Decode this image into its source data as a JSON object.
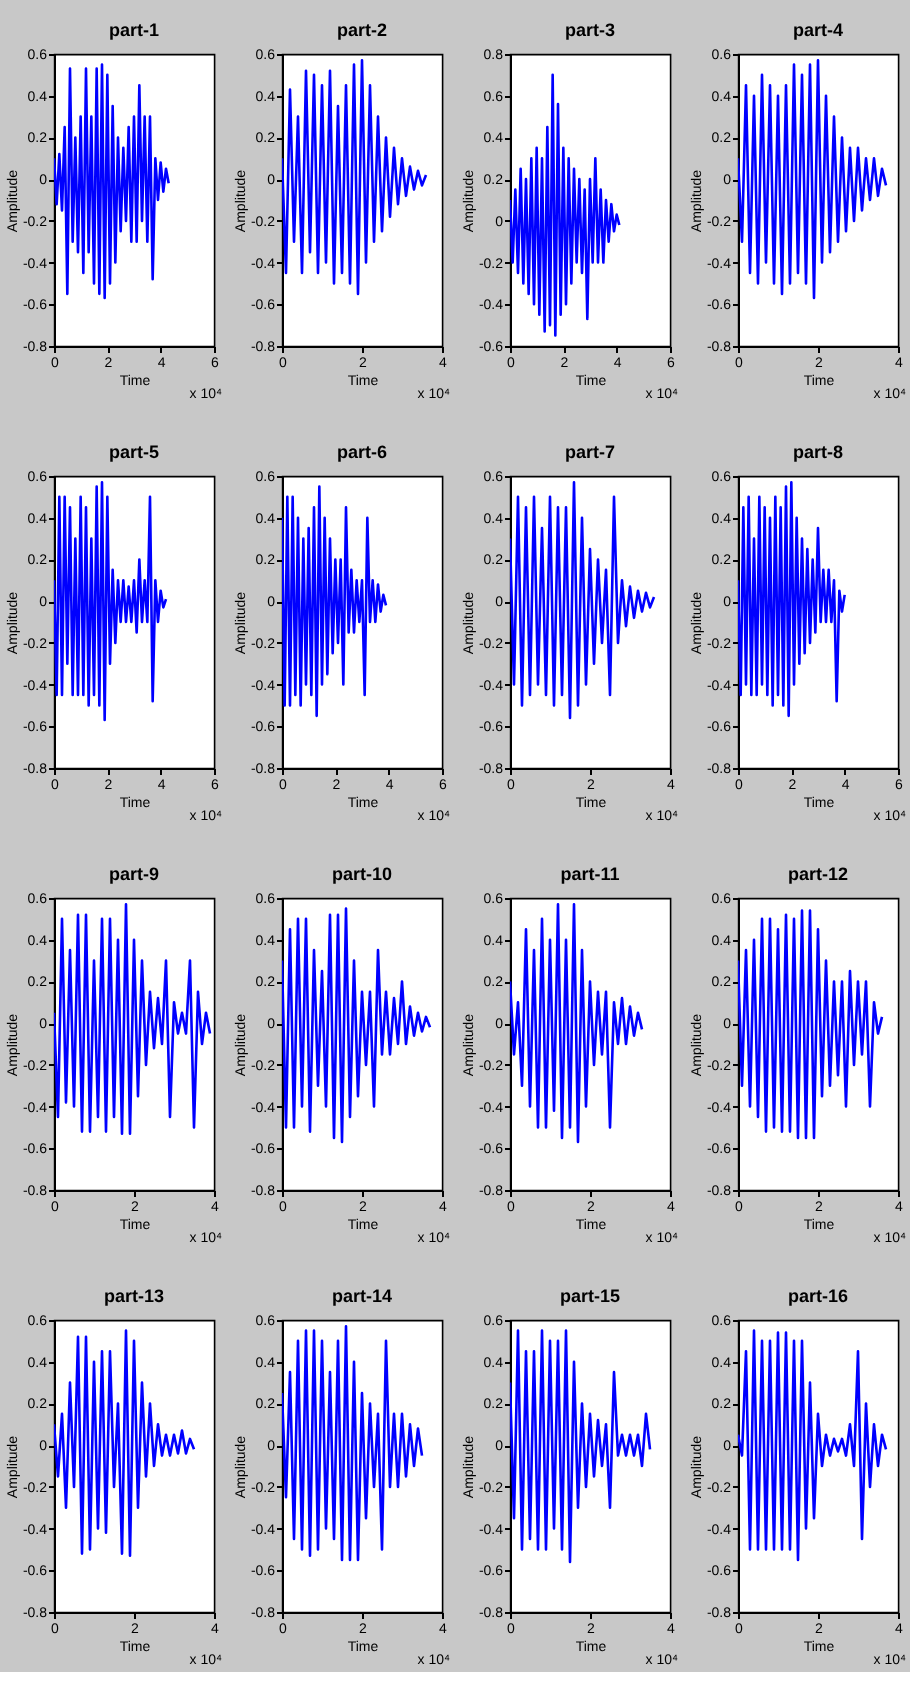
{
  "chart_data": [
    {
      "type": "line",
      "title": "part-1",
      "xlabel": "Time",
      "ylabel": "Amplitude",
      "annotations": [
        "x 10⁴"
      ],
      "xlim": [
        0,
        6
      ],
      "xticks": [
        0,
        2,
        4,
        6
      ],
      "ylim": [
        -0.8,
        0.6
      ],
      "yticks": [
        -0.8,
        -0.6,
        -0.4,
        -0.2,
        0,
        0.2,
        0.4,
        0.6
      ],
      "x": [
        0,
        0.1,
        0.2,
        0.3,
        0.4,
        0.5,
        0.6,
        0.7,
        0.8,
        0.9,
        1,
        1.1,
        1.2,
        1.3,
        1.4,
        1.5,
        1.6,
        1.7,
        1.8,
        1.9,
        2,
        2.1,
        2.2,
        2.3,
        2.4,
        2.5,
        2.6,
        2.7,
        2.8,
        2.9,
        3,
        3.1,
        3.2,
        3.3,
        3.4,
        3.5,
        3.6,
        3.7,
        3.8,
        3.9,
        4,
        4.1,
        4.2,
        4.3
      ],
      "series": [
        {
          "color": "#0000ff",
          "values": [
            0.1,
            -0.12,
            0.12,
            -0.15,
            0.25,
            -0.55,
            0.53,
            -0.3,
            0.2,
            -0.35,
            0.3,
            -0.45,
            0.53,
            -0.35,
            0.3,
            -0.5,
            0.53,
            -0.55,
            0.55,
            -0.57,
            0.5,
            -0.5,
            0.35,
            -0.4,
            0.2,
            -0.25,
            0.15,
            -0.2,
            0.25,
            -0.3,
            0.3,
            -0.3,
            0.45,
            -0.2,
            0.3,
            -0.3,
            0.3,
            -0.48,
            0.1,
            -0.1,
            0.08,
            -0.06,
            0.05,
            -0.02
          ]
        }
      ]
    },
    {
      "type": "line",
      "title": "part-2",
      "xlabel": "Time",
      "ylabel": "Amplitude",
      "annotations": [
        "x 10⁴"
      ],
      "xlim": [
        0,
        4
      ],
      "xticks": [
        0,
        2,
        4
      ],
      "ylim": [
        -0.8,
        0.6
      ],
      "yticks": [
        -0.8,
        -0.6,
        -0.4,
        -0.2,
        0,
        0.2,
        0.4,
        0.6
      ],
      "x": [
        0,
        0.1,
        0.2,
        0.3,
        0.4,
        0.5,
        0.6,
        0.7,
        0.8,
        0.9,
        1,
        1.1,
        1.2,
        1.3,
        1.4,
        1.5,
        1.6,
        1.7,
        1.8,
        1.9,
        2,
        2.1,
        2.2,
        2.3,
        2.4,
        2.5,
        2.6,
        2.7,
        2.8,
        2.9,
        3,
        3.1,
        3.2,
        3.3,
        3.4,
        3.5,
        3.6
      ],
      "series": [
        {
          "color": "#0000ff",
          "values": [
            0.1,
            -0.45,
            0.43,
            -0.3,
            0.3,
            -0.45,
            0.52,
            -0.35,
            0.5,
            -0.45,
            0.45,
            -0.4,
            0.52,
            -0.5,
            0.35,
            -0.45,
            0.45,
            -0.5,
            0.55,
            -0.55,
            0.57,
            -0.4,
            0.45,
            -0.3,
            0.3,
            -0.25,
            0.2,
            -0.18,
            0.15,
            -0.12,
            0.1,
            -0.08,
            0.06,
            -0.05,
            0.04,
            -0.03,
            0.02
          ]
        }
      ]
    },
    {
      "type": "line",
      "title": "part-3",
      "xlabel": "Time",
      "ylabel": "Amplitude",
      "annotations": [
        "x 10⁴"
      ],
      "xlim": [
        0,
        6
      ],
      "xticks": [
        0,
        2,
        4,
        6
      ],
      "ylim": [
        -0.6,
        0.8
      ],
      "yticks": [
        -0.6,
        -0.4,
        -0.2,
        0,
        0.2,
        0.4,
        0.6,
        0.8
      ],
      "x": [
        0,
        0.1,
        0.2,
        0.3,
        0.4,
        0.5,
        0.6,
        0.7,
        0.8,
        0.9,
        1,
        1.1,
        1.2,
        1.3,
        1.4,
        1.5,
        1.6,
        1.7,
        1.8,
        1.9,
        2,
        2.1,
        2.2,
        2.3,
        2.4,
        2.5,
        2.6,
        2.7,
        2.8,
        2.9,
        3,
        3.1,
        3.2,
        3.3,
        3.4,
        3.5,
        3.6,
        3.7,
        3.8,
        3.9,
        4,
        4.1
      ],
      "series": [
        {
          "color": "#0000ff",
          "values": [
            0.1,
            -0.2,
            0.15,
            -0.25,
            0.25,
            -0.3,
            0.2,
            -0.35,
            0.3,
            -0.4,
            0.35,
            -0.45,
            0.3,
            -0.53,
            0.45,
            -0.5,
            0.7,
            -0.55,
            0.56,
            -0.45,
            0.35,
            -0.4,
            0.3,
            -0.3,
            0.25,
            -0.2,
            0.2,
            -0.25,
            0.15,
            -0.47,
            0.2,
            -0.2,
            0.3,
            -0.2,
            0.15,
            -0.2,
            0.1,
            -0.1,
            0.08,
            -0.05,
            0.03,
            -0.02
          ]
        }
      ]
    },
    {
      "type": "line",
      "title": "part-4",
      "xlabel": "Time",
      "ylabel": "Amplitude",
      "annotations": [
        "x 10⁴"
      ],
      "xlim": [
        0,
        4
      ],
      "xticks": [
        0,
        2,
        4
      ],
      "ylim": [
        -0.8,
        0.6
      ],
      "yticks": [
        -0.8,
        -0.6,
        -0.4,
        -0.2,
        0,
        0.2,
        0.4,
        0.6
      ],
      "x": [
        0,
        0.1,
        0.2,
        0.3,
        0.4,
        0.5,
        0.6,
        0.7,
        0.8,
        0.9,
        1,
        1.1,
        1.2,
        1.3,
        1.4,
        1.5,
        1.6,
        1.7,
        1.8,
        1.9,
        2,
        2.1,
        2.2,
        2.3,
        2.4,
        2.5,
        2.6,
        2.7,
        2.8,
        2.9,
        3,
        3.1,
        3.2,
        3.3,
        3.4,
        3.5,
        3.6,
        3.7
      ],
      "series": [
        {
          "color": "#0000ff",
          "values": [
            0.1,
            -0.3,
            0.45,
            -0.45,
            0.4,
            -0.5,
            0.5,
            -0.4,
            0.45,
            -0.5,
            0.4,
            -0.55,
            0.45,
            -0.5,
            0.55,
            -0.45,
            0.5,
            -0.5,
            0.55,
            -0.57,
            0.57,
            -0.4,
            0.4,
            -0.35,
            0.3,
            -0.3,
            0.2,
            -0.25,
            0.15,
            -0.2,
            0.15,
            -0.15,
            0.1,
            -0.1,
            0.1,
            -0.08,
            0.05,
            -0.03
          ]
        }
      ]
    },
    {
      "type": "line",
      "title": "part-5",
      "xlabel": "Time",
      "ylabel": "Amplitude",
      "annotations": [
        "x 10⁴"
      ],
      "xlim": [
        0,
        6
      ],
      "xticks": [
        0,
        2,
        4,
        6
      ],
      "ylim": [
        -0.8,
        0.6
      ],
      "yticks": [
        -0.8,
        -0.6,
        -0.4,
        -0.2,
        0,
        0.2,
        0.4,
        0.6
      ],
      "x": [
        0,
        0.1,
        0.2,
        0.3,
        0.4,
        0.5,
        0.6,
        0.7,
        0.8,
        0.9,
        1,
        1.1,
        1.2,
        1.3,
        1.4,
        1.5,
        1.6,
        1.7,
        1.8,
        1.9,
        2,
        2.1,
        2.2,
        2.3,
        2.4,
        2.5,
        2.6,
        2.7,
        2.8,
        2.9,
        3,
        3.1,
        3.2,
        3.3,
        3.4,
        3.5,
        3.6,
        3.7,
        3.8,
        3.9,
        4,
        4.1,
        4.2
      ],
      "series": [
        {
          "color": "#0000ff",
          "values": [
            0.1,
            -0.45,
            0.5,
            -0.45,
            0.5,
            -0.3,
            0.45,
            -0.45,
            0.3,
            -0.45,
            0.5,
            -0.45,
            0.45,
            -0.5,
            0.3,
            -0.45,
            0.55,
            -0.5,
            0.57,
            -0.57,
            0.5,
            -0.3,
            0.15,
            -0.2,
            0.1,
            -0.1,
            0.1,
            -0.1,
            0.07,
            -0.1,
            0.1,
            -0.15,
            0.2,
            -0.1,
            0.1,
            -0.1,
            0.5,
            -0.48,
            0.1,
            -0.1,
            0.05,
            -0.03,
            0.01
          ]
        }
      ]
    },
    {
      "type": "line",
      "title": "part-6",
      "xlabel": "Time",
      "ylabel": "Amplitude",
      "annotations": [
        "x 10⁴"
      ],
      "xlim": [
        0,
        6
      ],
      "xticks": [
        0,
        2,
        4,
        6
      ],
      "ylim": [
        -0.8,
        0.6
      ],
      "yticks": [
        -0.8,
        -0.6,
        -0.4,
        -0.2,
        0,
        0.2,
        0.4,
        0.6
      ],
      "x": [
        0,
        0.1,
        0.2,
        0.3,
        0.4,
        0.5,
        0.6,
        0.7,
        0.8,
        0.9,
        1,
        1.1,
        1.2,
        1.3,
        1.4,
        1.5,
        1.6,
        1.7,
        1.8,
        1.9,
        2,
        2.1,
        2.2,
        2.3,
        2.4,
        2.5,
        2.6,
        2.7,
        2.8,
        2.9,
        3,
        3.1,
        3.2,
        3.3,
        3.4,
        3.5,
        3.6,
        3.7,
        3.8,
        3.9
      ],
      "series": [
        {
          "color": "#0000ff",
          "values": [
            0.4,
            -0.5,
            0.5,
            -0.5,
            0.5,
            -0.45,
            0.4,
            -0.5,
            0.3,
            -0.4,
            0.35,
            -0.45,
            0.45,
            -0.55,
            0.55,
            -0.4,
            0.4,
            -0.35,
            0.3,
            -0.25,
            0.2,
            -0.2,
            0.2,
            -0.4,
            0.45,
            -0.15,
            0.15,
            -0.15,
            0.1,
            -0.1,
            0.1,
            -0.45,
            0.4,
            -0.1,
            0.1,
            -0.1,
            0.08,
            -0.05,
            0.03,
            -0.02
          ]
        }
      ]
    },
    {
      "type": "line",
      "title": "part-7",
      "xlabel": "Time",
      "ylabel": "Amplitude",
      "annotations": [
        "x 10⁴"
      ],
      "xlim": [
        0,
        4
      ],
      "xticks": [
        0,
        2,
        4
      ],
      "ylim": [
        -0.8,
        0.6
      ],
      "yticks": [
        -0.8,
        -0.6,
        -0.4,
        -0.2,
        0,
        0.2,
        0.4,
        0.6
      ],
      "x": [
        0,
        0.1,
        0.2,
        0.3,
        0.4,
        0.5,
        0.6,
        0.7,
        0.8,
        0.9,
        1,
        1.1,
        1.2,
        1.3,
        1.4,
        1.5,
        1.6,
        1.7,
        1.8,
        1.9,
        2,
        2.1,
        2.2,
        2.3,
        2.4,
        2.5,
        2.6,
        2.7,
        2.8,
        2.9,
        3,
        3.1,
        3.2,
        3.3,
        3.4,
        3.5,
        3.6
      ],
      "series": [
        {
          "color": "#0000ff",
          "values": [
            0.3,
            -0.4,
            0.5,
            -0.5,
            0.45,
            -0.45,
            0.5,
            -0.4,
            0.35,
            -0.45,
            0.5,
            -0.5,
            0.45,
            -0.45,
            0.45,
            -0.56,
            0.57,
            -0.5,
            0.4,
            -0.4,
            0.25,
            -0.3,
            0.2,
            -0.2,
            0.15,
            -0.45,
            0.5,
            -0.2,
            0.1,
            -0.12,
            0.07,
            -0.08,
            0.05,
            -0.05,
            0.04,
            -0.03,
            0.02
          ]
        }
      ]
    },
    {
      "type": "line",
      "title": "part-8",
      "xlabel": "Time",
      "ylabel": "Amplitude",
      "annotations": [
        "x 10⁴"
      ],
      "xlim": [
        0,
        6
      ],
      "xticks": [
        0,
        2,
        4,
        6
      ],
      "ylim": [
        -0.8,
        0.6
      ],
      "yticks": [
        -0.8,
        -0.6,
        -0.4,
        -0.2,
        0,
        0.2,
        0.4,
        0.6
      ],
      "x": [
        0,
        0.1,
        0.2,
        0.3,
        0.4,
        0.5,
        0.6,
        0.7,
        0.8,
        0.9,
        1,
        1.1,
        1.2,
        1.3,
        1.4,
        1.5,
        1.6,
        1.7,
        1.8,
        1.9,
        2,
        2.1,
        2.2,
        2.3,
        2.4,
        2.5,
        2.6,
        2.7,
        2.8,
        2.9,
        3,
        3.1,
        3.2,
        3.3,
        3.4,
        3.5,
        3.6,
        3.7,
        3.8,
        3.9,
        4
      ],
      "series": [
        {
          "color": "#0000ff",
          "values": [
            0.1,
            -0.45,
            0.45,
            -0.4,
            0.5,
            -0.45,
            0.3,
            -0.45,
            0.5,
            -0.4,
            0.45,
            -0.45,
            0.4,
            -0.5,
            0.5,
            -0.45,
            0.45,
            -0.5,
            0.55,
            -0.55,
            0.57,
            -0.4,
            0.4,
            -0.3,
            0.3,
            -0.25,
            0.25,
            -0.2,
            0.2,
            -0.15,
            0.35,
            -0.1,
            0.15,
            -0.1,
            0.15,
            -0.1,
            0.1,
            -0.48,
            0.05,
            -0.05,
            0.03
          ]
        }
      ]
    },
    {
      "type": "line",
      "title": "part-9",
      "xlabel": "Time",
      "ylabel": "Amplitude",
      "annotations": [
        "x 10⁴"
      ],
      "xlim": [
        0,
        4
      ],
      "xticks": [
        0,
        2,
        4
      ],
      "ylim": [
        -0.8,
        0.6
      ],
      "yticks": [
        -0.8,
        -0.6,
        -0.4,
        -0.2,
        0,
        0.2,
        0.4,
        0.6
      ],
      "x": [
        0,
        0.1,
        0.2,
        0.3,
        0.4,
        0.5,
        0.6,
        0.7,
        0.8,
        0.9,
        1,
        1.1,
        1.2,
        1.3,
        1.4,
        1.5,
        1.6,
        1.7,
        1.8,
        1.9,
        2,
        2.1,
        2.2,
        2.3,
        2.4,
        2.5,
        2.6,
        2.7,
        2.8,
        2.9,
        3,
        3.1,
        3.2,
        3.3,
        3.4,
        3.5,
        3.6,
        3.7,
        3.8,
        3.9
      ],
      "series": [
        {
          "color": "#0000ff",
          "values": [
            0.05,
            -0.45,
            0.5,
            -0.38,
            0.35,
            -0.4,
            0.52,
            -0.52,
            0.52,
            -0.52,
            0.3,
            -0.45,
            0.5,
            -0.52,
            0.5,
            -0.45,
            0.4,
            -0.53,
            0.57,
            -0.53,
            0.4,
            -0.35,
            0.3,
            -0.2,
            0.15,
            -0.12,
            0.12,
            -0.1,
            0.3,
            -0.45,
            0.1,
            -0.05,
            0.05,
            -0.05,
            0.3,
            -0.5,
            0.15,
            -0.1,
            0.05,
            -0.05
          ]
        }
      ]
    },
    {
      "type": "line",
      "title": "part-10",
      "xlabel": "Time",
      "ylabel": "Amplitude",
      "annotations": [
        "x 10⁴"
      ],
      "xlim": [
        0,
        4
      ],
      "xticks": [
        0,
        2,
        4
      ],
      "ylim": [
        -0.8,
        0.6
      ],
      "yticks": [
        -0.8,
        -0.6,
        -0.4,
        -0.2,
        0,
        0.2,
        0.4,
        0.6
      ],
      "x": [
        0,
        0.1,
        0.2,
        0.3,
        0.4,
        0.5,
        0.6,
        0.7,
        0.8,
        0.9,
        1,
        1.1,
        1.2,
        1.3,
        1.4,
        1.5,
        1.6,
        1.7,
        1.8,
        1.9,
        2,
        2.1,
        2.2,
        2.3,
        2.4,
        2.5,
        2.6,
        2.7,
        2.8,
        2.9,
        3,
        3.1,
        3.2,
        3.3,
        3.4,
        3.5,
        3.6,
        3.7
      ],
      "series": [
        {
          "color": "#0000ff",
          "values": [
            0.3,
            -0.5,
            0.45,
            -0.5,
            0.5,
            -0.4,
            0.5,
            -0.52,
            0.35,
            -0.3,
            0.25,
            -0.4,
            0.52,
            -0.55,
            0.52,
            -0.57,
            0.55,
            -0.45,
            0.3,
            -0.35,
            0.15,
            -0.2,
            0.15,
            -0.4,
            0.35,
            -0.15,
            0.15,
            -0.15,
            0.12,
            -0.1,
            0.2,
            -0.1,
            0.08,
            -0.06,
            0.05,
            -0.04,
            0.03,
            -0.02
          ]
        }
      ]
    },
    {
      "type": "line",
      "title": "part-11",
      "xlabel": "Time",
      "ylabel": "Amplitude",
      "annotations": [
        "x 10⁴"
      ],
      "xlim": [
        0,
        4
      ],
      "xticks": [
        0,
        2,
        4
      ],
      "ylim": [
        -0.8,
        0.6
      ],
      "yticks": [
        -0.8,
        -0.6,
        -0.4,
        -0.2,
        0,
        0.2,
        0.4,
        0.6
      ],
      "x": [
        0,
        0.1,
        0.2,
        0.3,
        0.4,
        0.5,
        0.6,
        0.7,
        0.8,
        0.9,
        1,
        1.1,
        1.2,
        1.3,
        1.4,
        1.5,
        1.6,
        1.7,
        1.8,
        1.9,
        2,
        2.1,
        2.2,
        2.3,
        2.4,
        2.5,
        2.6,
        2.7,
        2.8,
        2.9,
        3,
        3.1,
        3.2,
        3.3
      ],
      "series": [
        {
          "color": "#0000ff",
          "values": [
            0.2,
            -0.15,
            0.1,
            -0.3,
            0.45,
            -0.4,
            0.35,
            -0.5,
            0.5,
            -0.5,
            0.4,
            -0.42,
            0.57,
            -0.55,
            0.4,
            -0.5,
            0.57,
            -0.57,
            0.35,
            -0.4,
            0.2,
            -0.2,
            0.15,
            -0.15,
            0.15,
            -0.5,
            0.1,
            -0.1,
            0.12,
            -0.1,
            0.08,
            -0.06,
            0.05,
            -0.03
          ]
        }
      ]
    },
    {
      "type": "line",
      "title": "part-12",
      "xlabel": "Time",
      "ylabel": "Amplitude",
      "annotations": [
        "x 10⁴"
      ],
      "xlim": [
        0,
        4
      ],
      "xticks": [
        0,
        2,
        4
      ],
      "ylim": [
        -0.8,
        0.6
      ],
      "yticks": [
        -0.8,
        -0.6,
        -0.4,
        -0.2,
        0,
        0.2,
        0.4,
        0.6
      ],
      "x": [
        0,
        0.1,
        0.2,
        0.3,
        0.4,
        0.5,
        0.6,
        0.7,
        0.8,
        0.9,
        1,
        1.1,
        1.2,
        1.3,
        1.4,
        1.5,
        1.6,
        1.7,
        1.8,
        1.9,
        2,
        2.1,
        2.2,
        2.3,
        2.4,
        2.5,
        2.6,
        2.7,
        2.8,
        2.9,
        3,
        3.1,
        3.2,
        3.3,
        3.4,
        3.5,
        3.6
      ],
      "series": [
        {
          "color": "#0000ff",
          "values": [
            0.3,
            -0.3,
            0.35,
            -0.4,
            0.4,
            -0.45,
            0.5,
            -0.52,
            0.5,
            -0.5,
            0.45,
            -0.52,
            0.52,
            -0.52,
            0.5,
            -0.55,
            0.54,
            -0.55,
            0.54,
            -0.55,
            0.45,
            -0.35,
            0.3,
            -0.3,
            0.2,
            -0.25,
            0.2,
            -0.4,
            0.25,
            -0.2,
            0.2,
            -0.15,
            0.2,
            -0.4,
            0.1,
            -0.05,
            0.03
          ]
        }
      ]
    },
    {
      "type": "line",
      "title": "part-13",
      "xlabel": "Time",
      "ylabel": "Amplitude",
      "annotations": [
        "x 10⁴"
      ],
      "xlim": [
        0,
        4
      ],
      "xticks": [
        0,
        2,
        4
      ],
      "ylim": [
        -0.8,
        0.6
      ],
      "yticks": [
        -0.8,
        -0.6,
        -0.4,
        -0.2,
        0,
        0.2,
        0.4,
        0.6
      ],
      "x": [
        0,
        0.1,
        0.2,
        0.3,
        0.4,
        0.5,
        0.6,
        0.7,
        0.8,
        0.9,
        1,
        1.1,
        1.2,
        1.3,
        1.4,
        1.5,
        1.6,
        1.7,
        1.8,
        1.9,
        2,
        2.1,
        2.2,
        2.3,
        2.4,
        2.5,
        2.6,
        2.7,
        2.8,
        2.9,
        3,
        3.1,
        3.2,
        3.3,
        3.4,
        3.5
      ],
      "series": [
        {
          "color": "#0000ff",
          "values": [
            0.1,
            -0.15,
            0.15,
            -0.3,
            0.3,
            -0.2,
            0.52,
            -0.52,
            0.52,
            -0.5,
            0.4,
            -0.4,
            0.45,
            -0.42,
            0.45,
            -0.2,
            0.2,
            -0.52,
            0.55,
            -0.53,
            0.5,
            -0.3,
            0.3,
            -0.15,
            0.2,
            -0.1,
            0.1,
            -0.05,
            0.05,
            -0.05,
            0.05,
            -0.04,
            0.07,
            -0.04,
            0.03,
            -0.02
          ]
        }
      ]
    },
    {
      "type": "line",
      "title": "part-14",
      "xlabel": "Time",
      "ylabel": "Amplitude",
      "annotations": [
        "x 10⁴"
      ],
      "xlim": [
        0,
        4
      ],
      "xticks": [
        0,
        2,
        4
      ],
      "ylim": [
        -0.8,
        0.6
      ],
      "yticks": [
        -0.8,
        -0.6,
        -0.4,
        -0.2,
        0,
        0.2,
        0.4,
        0.6
      ],
      "x": [
        0,
        0.1,
        0.2,
        0.3,
        0.4,
        0.5,
        0.6,
        0.7,
        0.8,
        0.9,
        1,
        1.1,
        1.2,
        1.3,
        1.4,
        1.5,
        1.6,
        1.7,
        1.8,
        1.9,
        2,
        2.1,
        2.2,
        2.3,
        2.4,
        2.5,
        2.6,
        2.7,
        2.8,
        2.9,
        3,
        3.1,
        3.2,
        3.3,
        3.4,
        3.5
      ],
      "series": [
        {
          "color": "#0000ff",
          "values": [
            0.25,
            -0.25,
            0.35,
            -0.45,
            0.5,
            -0.5,
            0.55,
            -0.53,
            0.55,
            -0.5,
            0.5,
            -0.4,
            0.35,
            -0.45,
            0.5,
            -0.55,
            0.57,
            -0.55,
            0.4,
            -0.55,
            0.25,
            -0.35,
            0.2,
            -0.2,
            0.15,
            -0.5,
            0.5,
            -0.2,
            0.15,
            -0.2,
            0.15,
            -0.15,
            0.1,
            -0.1,
            0.08,
            -0.05
          ]
        }
      ]
    },
    {
      "type": "line",
      "title": "part-15",
      "xlabel": "Time",
      "ylabel": "Amplitude",
      "annotations": [
        "x 10⁴"
      ],
      "xlim": [
        0,
        4
      ],
      "xticks": [
        0,
        2,
        4
      ],
      "ylim": [
        -0.8,
        0.6
      ],
      "yticks": [
        -0.8,
        -0.6,
        -0.4,
        -0.2,
        0,
        0.2,
        0.4,
        0.6
      ],
      "x": [
        0,
        0.1,
        0.2,
        0.3,
        0.4,
        0.5,
        0.6,
        0.7,
        0.8,
        0.9,
        1,
        1.1,
        1.2,
        1.3,
        1.4,
        1.5,
        1.6,
        1.7,
        1.8,
        1.9,
        2,
        2.1,
        2.2,
        2.3,
        2.4,
        2.5,
        2.6,
        2.7,
        2.8,
        2.9,
        3,
        3.1,
        3.2,
        3.3,
        3.4,
        3.5
      ],
      "series": [
        {
          "color": "#0000ff",
          "values": [
            0.3,
            -0.35,
            0.55,
            -0.5,
            0.45,
            -0.45,
            0.45,
            -0.5,
            0.55,
            -0.5,
            0.5,
            -0.4,
            0.5,
            -0.5,
            0.55,
            -0.56,
            0.4,
            -0.3,
            0.2,
            -0.2,
            0.15,
            -0.15,
            0.12,
            -0.1,
            0.1,
            -0.3,
            0.35,
            -0.05,
            0.05,
            -0.05,
            0.05,
            -0.05,
            0.05,
            -0.1,
            0.15,
            -0.02
          ]
        }
      ]
    },
    {
      "type": "line",
      "title": "part-16",
      "xlabel": "Time",
      "ylabel": "Amplitude",
      "annotations": [
        "x 10⁴"
      ],
      "xlim": [
        0,
        4
      ],
      "xticks": [
        0,
        2,
        4
      ],
      "ylim": [
        -0.8,
        0.6
      ],
      "yticks": [
        -0.8,
        -0.6,
        -0.4,
        -0.2,
        0,
        0.2,
        0.4,
        0.6
      ],
      "x": [
        0,
        0.1,
        0.2,
        0.3,
        0.4,
        0.5,
        0.6,
        0.7,
        0.8,
        0.9,
        1,
        1.1,
        1.2,
        1.3,
        1.4,
        1.5,
        1.6,
        1.7,
        1.8,
        1.9,
        2,
        2.1,
        2.2,
        2.3,
        2.4,
        2.5,
        2.6,
        2.7,
        2.8,
        2.9,
        3,
        3.1,
        3.2,
        3.3,
        3.4,
        3.5,
        3.6,
        3.7
      ],
      "series": [
        {
          "color": "#0000ff",
          "values": [
            0.05,
            -0.05,
            0.45,
            -0.5,
            0.55,
            -0.5,
            0.5,
            -0.5,
            0.5,
            -0.5,
            0.54,
            -0.5,
            0.54,
            -0.5,
            0.5,
            -0.55,
            0.5,
            -0.4,
            0.3,
            -0.35,
            0.15,
            -0.1,
            0.05,
            -0.05,
            0.03,
            -0.03,
            0.03,
            -0.05,
            0.1,
            -0.1,
            0.45,
            -0.45,
            0.2,
            -0.2,
            0.1,
            -0.1,
            0.05,
            -0.02
          ]
        }
      ]
    }
  ]
}
